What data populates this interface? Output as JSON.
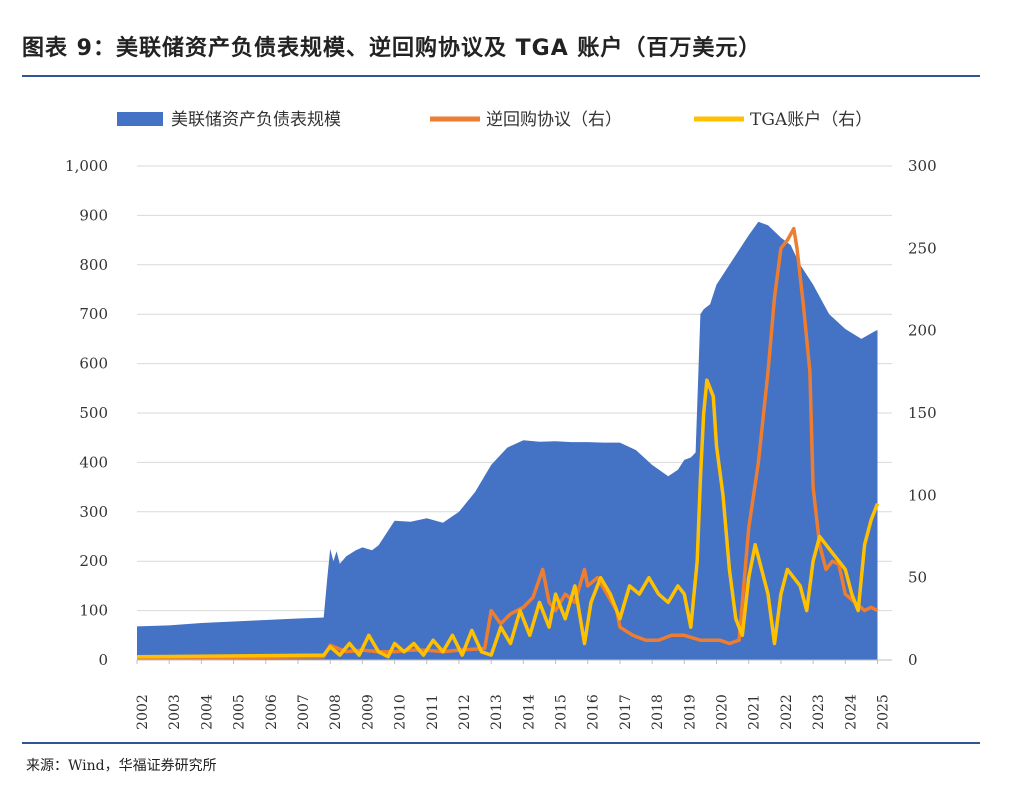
{
  "figure": {
    "title": "图表 9：美联储资产负债表规模、逆回购协议及 TGA 账户（百万美元）",
    "source": "来源：Wind，华福证券研究所"
  },
  "chart_data": {
    "type": "area",
    "title": "",
    "xlabel": "",
    "ylabel": "",
    "ylabel_right": "",
    "x_ticks": [
      "2002",
      "2003",
      "2004",
      "2005",
      "2006",
      "2007",
      "2008",
      "2009",
      "2010",
      "2011",
      "2012",
      "2013",
      "2014",
      "2015",
      "2016",
      "2017",
      "2018",
      "2019",
      "2020",
      "2021",
      "2022",
      "2023",
      "2024",
      "2025"
    ],
    "y_left": {
      "min": 0,
      "max": 1000,
      "ticks": [
        0,
        100,
        200,
        300,
        400,
        500,
        600,
        700,
        800,
        900,
        1000
      ],
      "tick_labels": [
        "0",
        "100",
        "200",
        "300",
        "400",
        "500",
        "600",
        "700",
        "800",
        "900",
        "1,000"
      ]
    },
    "y_right": {
      "min": 0,
      "max": 300,
      "ticks": [
        0,
        50,
        100,
        150,
        200,
        250,
        300
      ],
      "tick_labels": [
        "0",
        "50",
        "100",
        "150",
        "200",
        "250",
        "300"
      ]
    },
    "grid": true,
    "legend_position": "top",
    "series": [
      {
        "name": "美联储资产负债表规模",
        "type": "area",
        "axis": "left",
        "color": "#4472c4",
        "points": [
          [
            2002.0,
            68
          ],
          [
            2003.0,
            70
          ],
          [
            2004.0,
            75
          ],
          [
            2005.0,
            78
          ],
          [
            2006.0,
            81
          ],
          [
            2007.0,
            84
          ],
          [
            2007.8,
            86
          ],
          [
            2007.9,
            160
          ],
          [
            2008.0,
            225
          ],
          [
            2008.1,
            200
          ],
          [
            2008.2,
            220
          ],
          [
            2008.3,
            195
          ],
          [
            2008.5,
            210
          ],
          [
            2008.8,
            222
          ],
          [
            2009.0,
            228
          ],
          [
            2009.3,
            222
          ],
          [
            2009.5,
            232
          ],
          [
            2010.0,
            282
          ],
          [
            2010.5,
            280
          ],
          [
            2011.0,
            287
          ],
          [
            2011.5,
            278
          ],
          [
            2012.0,
            300
          ],
          [
            2012.5,
            340
          ],
          [
            2013.0,
            395
          ],
          [
            2013.5,
            430
          ],
          [
            2014.0,
            445
          ],
          [
            2014.5,
            442
          ],
          [
            2015.0,
            443
          ],
          [
            2015.5,
            441
          ],
          [
            2016.0,
            441
          ],
          [
            2016.5,
            440
          ],
          [
            2017.0,
            440
          ],
          [
            2017.5,
            425
          ],
          [
            2018.0,
            395
          ],
          [
            2018.5,
            372
          ],
          [
            2018.8,
            385
          ],
          [
            2019.0,
            405
          ],
          [
            2019.2,
            410
          ],
          [
            2019.35,
            420
          ],
          [
            2019.5,
            700
          ],
          [
            2019.6,
            710
          ],
          [
            2019.8,
            720
          ],
          [
            2020.0,
            760
          ],
          [
            2020.5,
            810
          ],
          [
            2021.0,
            860
          ],
          [
            2021.3,
            887
          ],
          [
            2021.6,
            880
          ],
          [
            2022.0,
            855
          ],
          [
            2022.3,
            840
          ],
          [
            2022.6,
            800
          ],
          [
            2023.0,
            760
          ],
          [
            2023.5,
            700
          ],
          [
            2024.0,
            670
          ],
          [
            2024.5,
            650
          ],
          [
            2024.9,
            665
          ],
          [
            2025.0,
            668
          ]
        ]
      },
      {
        "name": "逆回购协议（右）",
        "type": "line",
        "axis": "right",
        "color": "#ed7d31",
        "points": [
          [
            2002.0,
            1
          ],
          [
            2007.8,
            2
          ],
          [
            2008.0,
            9
          ],
          [
            2008.5,
            5
          ],
          [
            2009.0,
            6
          ],
          [
            2009.5,
            5
          ],
          [
            2010.0,
            5
          ],
          [
            2010.5,
            6
          ],
          [
            2011.0,
            6
          ],
          [
            2011.5,
            5
          ],
          [
            2012.0,
            6
          ],
          [
            2012.8,
            7
          ],
          [
            2013.0,
            30
          ],
          [
            2013.3,
            22
          ],
          [
            2013.6,
            28
          ],
          [
            2014.0,
            32
          ],
          [
            2014.3,
            38
          ],
          [
            2014.6,
            55
          ],
          [
            2014.8,
            35
          ],
          [
            2015.0,
            30
          ],
          [
            2015.3,
            40
          ],
          [
            2015.6,
            35
          ],
          [
            2015.9,
            55
          ],
          [
            2016.0,
            45
          ],
          [
            2016.3,
            50
          ],
          [
            2016.6,
            40
          ],
          [
            2016.9,
            30
          ],
          [
            2017.0,
            20
          ],
          [
            2017.4,
            15
          ],
          [
            2017.8,
            12
          ],
          [
            2018.2,
            12
          ],
          [
            2018.6,
            15
          ],
          [
            2019.0,
            15
          ],
          [
            2019.5,
            12
          ],
          [
            2019.9,
            12
          ],
          [
            2020.1,
            12
          ],
          [
            2020.4,
            10
          ],
          [
            2020.7,
            12
          ],
          [
            2021.0,
            80
          ],
          [
            2021.3,
            120
          ],
          [
            2021.6,
            175
          ],
          [
            2021.8,
            220
          ],
          [
            2022.0,
            250
          ],
          [
            2022.2,
            255
          ],
          [
            2022.4,
            262
          ],
          [
            2022.5,
            250
          ],
          [
            2022.7,
            215
          ],
          [
            2022.9,
            175
          ],
          [
            2023.0,
            105
          ],
          [
            2023.2,
            70
          ],
          [
            2023.4,
            55
          ],
          [
            2023.6,
            60
          ],
          [
            2023.8,
            58
          ],
          [
            2024.0,
            40
          ],
          [
            2024.3,
            35
          ],
          [
            2024.6,
            30
          ],
          [
            2024.8,
            32
          ],
          [
            2025.0,
            30
          ]
        ]
      },
      {
        "name": "TGA账户（右）",
        "type": "line",
        "axis": "right",
        "color": "#ffc000",
        "points": [
          [
            2002.0,
            2
          ],
          [
            2007.8,
            3
          ],
          [
            2008.0,
            8
          ],
          [
            2008.3,
            3
          ],
          [
            2008.6,
            10
          ],
          [
            2008.9,
            3
          ],
          [
            2009.2,
            15
          ],
          [
            2009.5,
            5
          ],
          [
            2009.8,
            2
          ],
          [
            2010.0,
            10
          ],
          [
            2010.3,
            5
          ],
          [
            2010.6,
            10
          ],
          [
            2010.9,
            3
          ],
          [
            2011.2,
            12
          ],
          [
            2011.5,
            5
          ],
          [
            2011.8,
            15
          ],
          [
            2012.1,
            3
          ],
          [
            2012.4,
            18
          ],
          [
            2012.7,
            5
          ],
          [
            2013.0,
            3
          ],
          [
            2013.3,
            20
          ],
          [
            2013.6,
            10
          ],
          [
            2013.9,
            30
          ],
          [
            2014.2,
            15
          ],
          [
            2014.5,
            35
          ],
          [
            2014.8,
            20
          ],
          [
            2015.0,
            40
          ],
          [
            2015.3,
            25
          ],
          [
            2015.6,
            45
          ],
          [
            2015.9,
            10
          ],
          [
            2016.1,
            35
          ],
          [
            2016.4,
            50
          ],
          [
            2016.7,
            40
          ],
          [
            2017.0,
            25
          ],
          [
            2017.3,
            45
          ],
          [
            2017.6,
            40
          ],
          [
            2017.9,
            50
          ],
          [
            2018.2,
            40
          ],
          [
            2018.5,
            35
          ],
          [
            2018.8,
            45
          ],
          [
            2019.0,
            40
          ],
          [
            2019.2,
            20
          ],
          [
            2019.4,
            60
          ],
          [
            2019.5,
            110
          ],
          [
            2019.6,
            150
          ],
          [
            2019.7,
            170
          ],
          [
            2019.9,
            160
          ],
          [
            2020.0,
            130
          ],
          [
            2020.2,
            100
          ],
          [
            2020.4,
            55
          ],
          [
            2020.6,
            25
          ],
          [
            2020.8,
            15
          ],
          [
            2021.0,
            50
          ],
          [
            2021.2,
            70
          ],
          [
            2021.4,
            55
          ],
          [
            2021.6,
            40
          ],
          [
            2021.8,
            10
          ],
          [
            2022.0,
            40
          ],
          [
            2022.2,
            55
          ],
          [
            2022.4,
            50
          ],
          [
            2022.6,
            45
          ],
          [
            2022.8,
            30
          ],
          [
            2023.0,
            60
          ],
          [
            2023.2,
            75
          ],
          [
            2023.4,
            70
          ],
          [
            2023.6,
            65
          ],
          [
            2023.8,
            60
          ],
          [
            2024.0,
            55
          ],
          [
            2024.2,
            40
          ],
          [
            2024.4,
            30
          ],
          [
            2024.6,
            70
          ],
          [
            2024.8,
            85
          ],
          [
            2025.0,
            95
          ]
        ]
      }
    ]
  }
}
